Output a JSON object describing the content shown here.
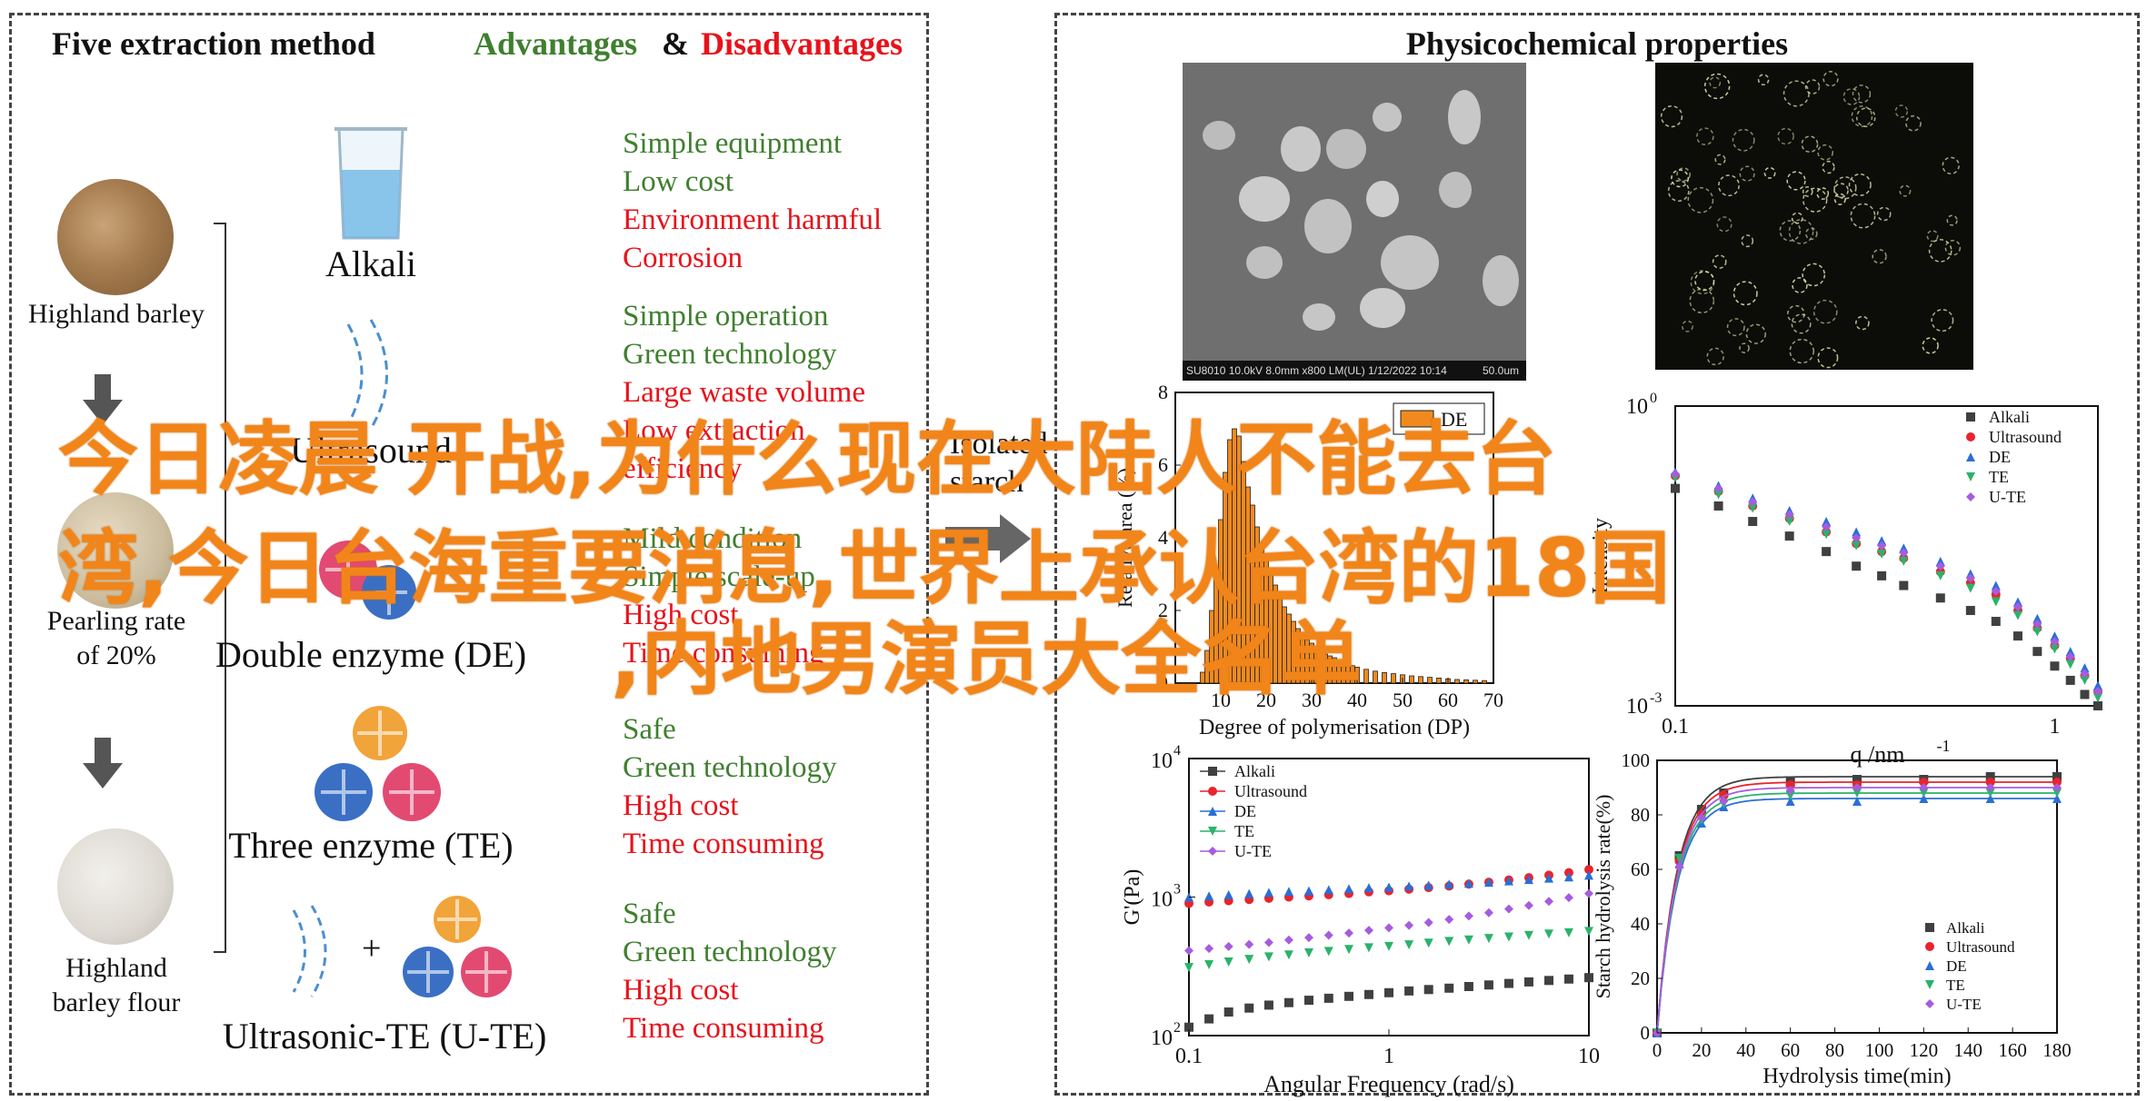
{
  "left": {
    "title": "Five extraction method",
    "advantages": "Advantages",
    "amp": "&",
    "disadvantages": "Disadvantages",
    "barley_labels": [
      "Highland barley",
      "Pearling rate\nof 20%",
      "Highland\nbarley flour"
    ],
    "methods": [
      {
        "name": "Alkali",
        "pros": [
          "Simple equipment",
          "Low cost"
        ],
        "cons": [
          "Environment harmful",
          "Corrosion"
        ]
      },
      {
        "name": "Ultrasound",
        "pros": [
          "Simple operation",
          "Green technology"
        ],
        "cons": [
          "Large waste volume",
          "Low extraction",
          "efficiency"
        ]
      },
      {
        "name": "Double enzyme (DE)",
        "pros": [
          "Mild condition",
          "Simple scale-up"
        ],
        "cons": [
          "High cost",
          "Time consuming"
        ]
      },
      {
        "name": "Three enzyme (TE)",
        "pros": [
          "Safe",
          "Green technology"
        ],
        "cons": [
          "High cost",
          "Time consuming"
        ]
      },
      {
        "name": "Ultrasonic-TE (U-TE)",
        "pros": [
          "Safe",
          "Green technology"
        ],
        "cons": [
          "High cost",
          "Time consuming"
        ]
      }
    ],
    "plus": "+"
  },
  "right": {
    "title": "Physicochemical properties",
    "sem_caption": "SU8010 10.0kV 8.0mm x800 LM(UL) 1/12/2022 10:14",
    "sem_scale": "50.0um",
    "isolated_text": "Isolated",
    "starch_text": "starch"
  },
  "overlay": {
    "line1": "今日凌晨  开战,为什么现在大陆人不能去台",
    "line2": "湾,今日台海重要消息,世界上承认台湾的18国",
    "line3": ",内地男演员大全名单"
  },
  "chart_data": [
    {
      "type": "bar",
      "title": "",
      "xlabel": "Degree of polymerisation (DP)",
      "ylabel": "Relative area (%)",
      "xlim": [
        0,
        70
      ],
      "ylim": [
        0,
        8
      ],
      "xticks": [
        "10",
        "20",
        "30",
        "40",
        "50",
        "60",
        "70"
      ],
      "yticks": [
        "0",
        "2",
        "4",
        "6",
        "8"
      ],
      "legend": [
        "DE"
      ],
      "colors": {
        "DE": "#f08a1e"
      },
      "series": [
        {
          "name": "DE",
          "x": [
            6,
            7,
            8,
            9,
            10,
            11,
            12,
            13,
            14,
            15,
            16,
            17,
            18,
            19,
            20,
            21,
            22,
            23,
            24,
            25,
            26,
            27,
            28,
            29,
            30,
            31,
            32,
            33,
            34,
            35,
            36,
            37,
            38,
            39,
            40,
            42,
            44,
            46,
            48,
            50,
            52,
            54,
            56,
            58,
            60,
            62,
            64,
            66,
            68
          ],
          "values": [
            0.3,
            0.9,
            2.0,
            3.1,
            4.5,
            5.8,
            6.7,
            7.0,
            6.8,
            6.1,
            5.4,
            4.9,
            4.3,
            3.8,
            3.4,
            3.0,
            2.7,
            2.4,
            2.1,
            1.9,
            1.7,
            1.5,
            1.3,
            1.2,
            1.1,
            1.0,
            0.9,
            0.8,
            0.75,
            0.7,
            0.62,
            0.57,
            0.52,
            0.48,
            0.44,
            0.38,
            0.33,
            0.29,
            0.26,
            0.23,
            0.2,
            0.18,
            0.16,
            0.14,
            0.12,
            0.1,
            0.09,
            0.08,
            0.07
          ]
        }
      ]
    },
    {
      "type": "line",
      "title": "",
      "xlabel": "q /nm",
      "xlabel_sup": "-1",
      "ylabel": "Intensity",
      "scale": "log-log",
      "xlim": [
        0.1,
        1.3
      ],
      "ylim": [
        0.001,
        1
      ],
      "xticks": [
        "0.1",
        "1"
      ],
      "yticks": [
        "10",
        "10"
      ],
      "ytick_sups": [
        "-3",
        "0"
      ],
      "legend": [
        "Alkali",
        "Ultrasound",
        "DE",
        "TE",
        "U-TE"
      ],
      "colors": {
        "Alkali": "#404040",
        "Ultrasound": "#e8242c",
        "DE": "#2a6fd6",
        "TE": "#2ab36a",
        "U-TE": "#a55ce0"
      },
      "x": [
        0.1,
        0.13,
        0.16,
        0.2,
        0.25,
        0.3,
        0.35,
        0.4,
        0.5,
        0.6,
        0.7,
        0.8,
        0.9,
        1.0,
        1.1,
        1.2,
        1.3
      ],
      "series": [
        {
          "name": "Alkali",
          "values": [
            0.15,
            0.1,
            0.07,
            0.05,
            0.035,
            0.025,
            0.02,
            0.016,
            0.012,
            0.009,
            0.007,
            0.005,
            0.0035,
            0.0025,
            0.0018,
            0.0013,
            0.001
          ]
        },
        {
          "name": "Ultrasound",
          "values": [
            0.2,
            0.14,
            0.1,
            0.075,
            0.055,
            0.042,
            0.035,
            0.03,
            0.022,
            0.017,
            0.013,
            0.009,
            0.006,
            0.004,
            0.003,
            0.002,
            0.0014
          ]
        },
        {
          "name": "DE",
          "values": [
            0.22,
            0.16,
            0.12,
            0.09,
            0.07,
            0.055,
            0.045,
            0.038,
            0.028,
            0.021,
            0.016,
            0.011,
            0.0075,
            0.005,
            0.0035,
            0.0024,
            0.0016
          ]
        },
        {
          "name": "TE",
          "values": [
            0.19,
            0.13,
            0.095,
            0.07,
            0.052,
            0.04,
            0.033,
            0.028,
            0.02,
            0.015,
            0.011,
            0.008,
            0.0055,
            0.0037,
            0.0026,
            0.0018,
            0.0012
          ]
        },
        {
          "name": "U-TE",
          "values": [
            0.21,
            0.15,
            0.11,
            0.082,
            0.062,
            0.048,
            0.04,
            0.034,
            0.025,
            0.019,
            0.014,
            0.0098,
            0.0066,
            0.0044,
            0.0031,
            0.0021,
            0.0014
          ]
        }
      ]
    },
    {
      "type": "line",
      "title": "",
      "xlabel": "Angular Frequency (rad/s)",
      "ylabel": "G'(Pa)",
      "scale": "log-log",
      "xlim": [
        0.1,
        10
      ],
      "ylim": [
        100,
        10000
      ],
      "xticks": [
        "0.1",
        "1",
        "10"
      ],
      "yticks": [
        "10",
        "10",
        "10"
      ],
      "ytick_sups": [
        "2",
        "3",
        "4"
      ],
      "legend": [
        "Alkali",
        "Ultrasound",
        "DE",
        "TE",
        "U-TE"
      ],
      "colors": {
        "Alkali": "#404040",
        "Ultrasound": "#e8242c",
        "DE": "#2a6fd6",
        "TE": "#2ab36a",
        "U-TE": "#a55ce0"
      },
      "x": [
        0.1,
        0.126,
        0.158,
        0.2,
        0.251,
        0.316,
        0.398,
        0.5,
        0.631,
        0.794,
        1,
        1.26,
        1.58,
        2,
        2.51,
        3.16,
        3.98,
        5.01,
        6.31,
        7.94,
        10
      ],
      "series": [
        {
          "name": "Alkali",
          "values": [
            115,
            132,
            148,
            158,
            166,
            173,
            180,
            186,
            192,
            198,
            204,
            210,
            215,
            220,
            226,
            232,
            238,
            244,
            250,
            256,
            262
          ]
        },
        {
          "name": "Ultrasound",
          "values": [
            900,
            920,
            940,
            960,
            980,
            1000,
            1020,
            1040,
            1060,
            1090,
            1110,
            1140,
            1170,
            1200,
            1240,
            1280,
            1330,
            1380,
            1440,
            1500,
            1580
          ]
        },
        {
          "name": "DE",
          "values": [
            1000,
            1020,
            1040,
            1060,
            1080,
            1100,
            1110,
            1130,
            1150,
            1170,
            1180,
            1200,
            1220,
            1240,
            1260,
            1280,
            1310,
            1340,
            1370,
            1400,
            1440
          ]
        },
        {
          "name": "TE",
          "values": [
            310,
            325,
            340,
            355,
            370,
            382,
            395,
            405,
            418,
            430,
            440,
            452,
            465,
            478,
            490,
            502,
            515,
            528,
            540,
            552,
            565
          ]
        },
        {
          "name": "U-TE",
          "values": [
            410,
            425,
            440,
            455,
            470,
            490,
            510,
            530,
            550,
            575,
            600,
            625,
            655,
            690,
            730,
            770,
            820,
            870,
            930,
            990,
            1060
          ]
        }
      ]
    },
    {
      "type": "line",
      "title": "",
      "xlabel": "Hydrolysis time(min)",
      "ylabel": "Starch hydrolysis rate(%)",
      "xlim": [
        0,
        180
      ],
      "ylim": [
        0,
        100
      ],
      "xticks": [
        "0",
        "20",
        "40",
        "60",
        "80",
        "100",
        "120",
        "140",
        "160",
        "180"
      ],
      "yticks": [
        "0",
        "20",
        "40",
        "60",
        "80",
        "100"
      ],
      "legend": [
        "Alkali",
        "Ultrasound",
        "DE",
        "TE",
        "U-TE"
      ],
      "colors": {
        "Alkali": "#404040",
        "Ultrasound": "#e8242c",
        "DE": "#2a6fd6",
        "TE": "#2ab36a",
        "U-TE": "#a55ce0"
      },
      "x": [
        0,
        10,
        20,
        30,
        60,
        90,
        120,
        150,
        180
      ],
      "series": [
        {
          "name": "Alkali",
          "values": [
            0,
            65,
            82,
            88,
            92,
            93,
            93,
            94,
            94
          ]
        },
        {
          "name": "Ultrasound",
          "values": [
            0,
            63,
            80,
            87,
            91,
            91,
            92,
            92,
            92
          ]
        },
        {
          "name": "DE",
          "values": [
            0,
            62,
            77,
            83,
            85,
            85,
            86,
            86,
            86
          ]
        },
        {
          "name": "TE",
          "values": [
            0,
            64,
            78,
            84,
            87,
            88,
            88,
            88,
            88
          ]
        },
        {
          "name": "U-TE",
          "values": [
            0,
            61,
            79,
            85,
            89,
            90,
            90,
            90,
            90
          ]
        }
      ]
    }
  ]
}
